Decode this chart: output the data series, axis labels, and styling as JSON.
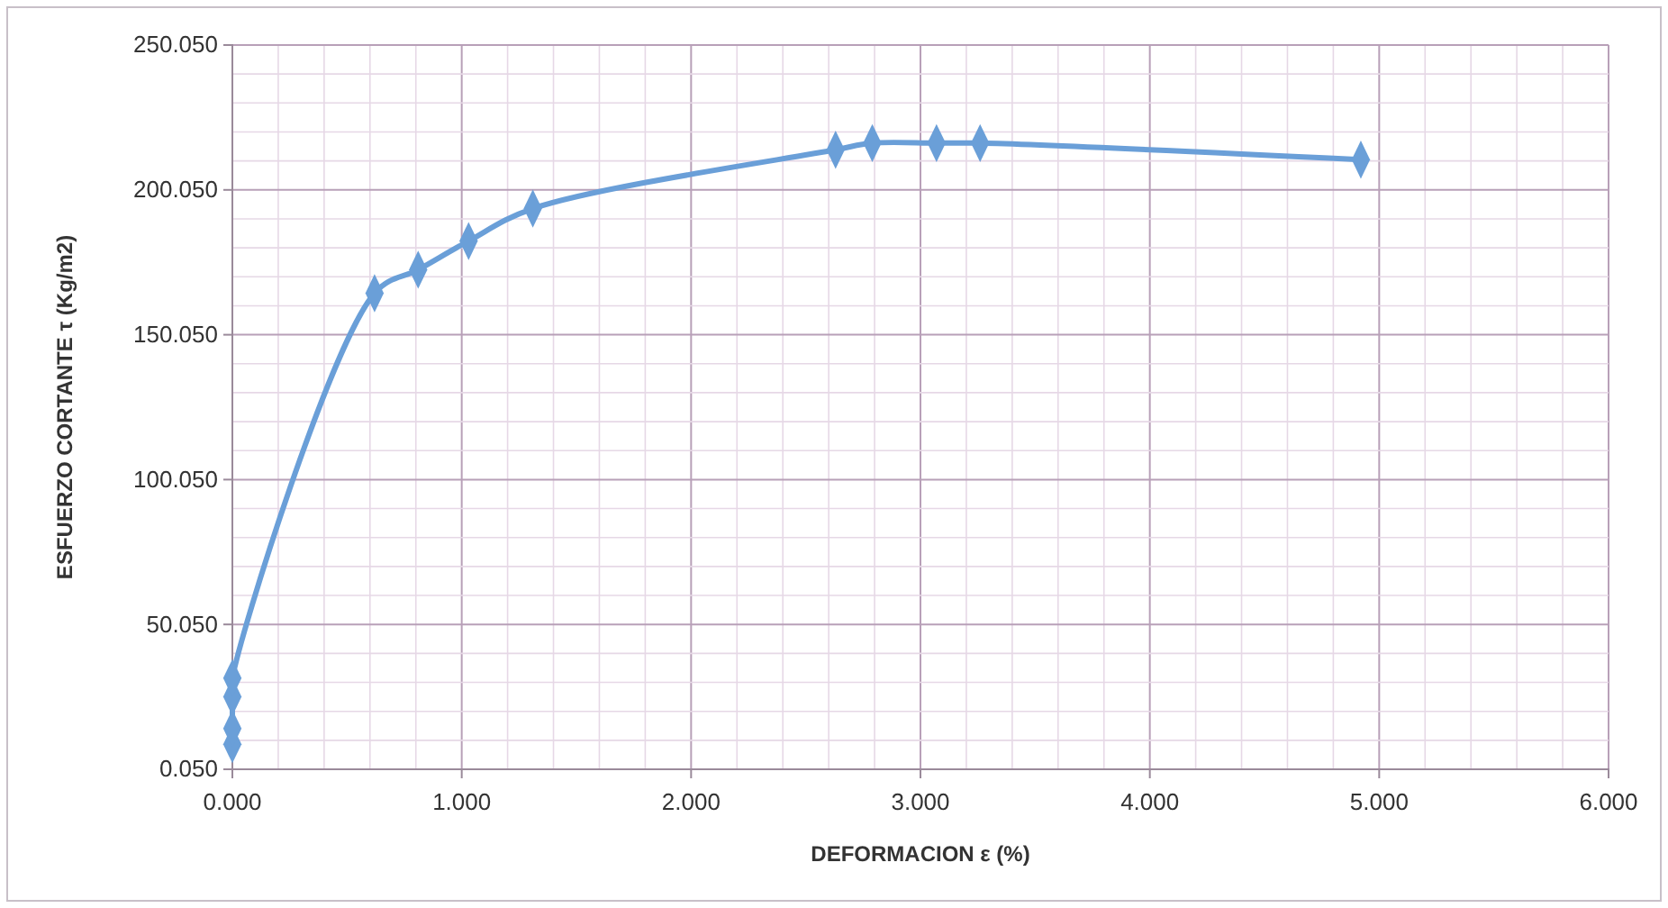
{
  "chart_data": {
    "type": "line",
    "xlabel": "DEFORMACION ε (%)",
    "ylabel": "ESFUERZO CORTANTE τ (Kg/m2)",
    "xlim": [
      0,
      6
    ],
    "ylim": [
      0.05,
      250.05
    ],
    "xticks": [
      {
        "value": 0,
        "label": "0.000"
      },
      {
        "value": 1,
        "label": "1.000"
      },
      {
        "value": 2,
        "label": "2.000"
      },
      {
        "value": 3,
        "label": "3.000"
      },
      {
        "value": 4,
        "label": "4.000"
      },
      {
        "value": 5,
        "label": "5.000"
      },
      {
        "value": 6,
        "label": "6.000"
      }
    ],
    "yticks": [
      {
        "value": 0.05,
        "label": "0.050"
      },
      {
        "value": 50.05,
        "label": "50.050"
      },
      {
        "value": 100.05,
        "label": "100.050"
      },
      {
        "value": 150.05,
        "label": "150.050"
      },
      {
        "value": 200.05,
        "label": "200.050"
      },
      {
        "value": 250.05,
        "label": "250.050"
      }
    ],
    "grid": true,
    "marker": "diamond",
    "line_style": "solid",
    "series": [
      {
        "color": "#6a9fd8",
        "x": [
          0,
          0,
          0,
          0,
          0.62,
          0.81,
          1.03,
          1.31,
          2.63,
          2.79,
          3.07,
          3.26,
          4.92
        ],
        "values": [
          8.7,
          14.1,
          25.1,
          31.5,
          164.4,
          172.5,
          182.4,
          193.6,
          213.9,
          216.2,
          216.2,
          216.2,
          210.5
        ]
      }
    ]
  }
}
